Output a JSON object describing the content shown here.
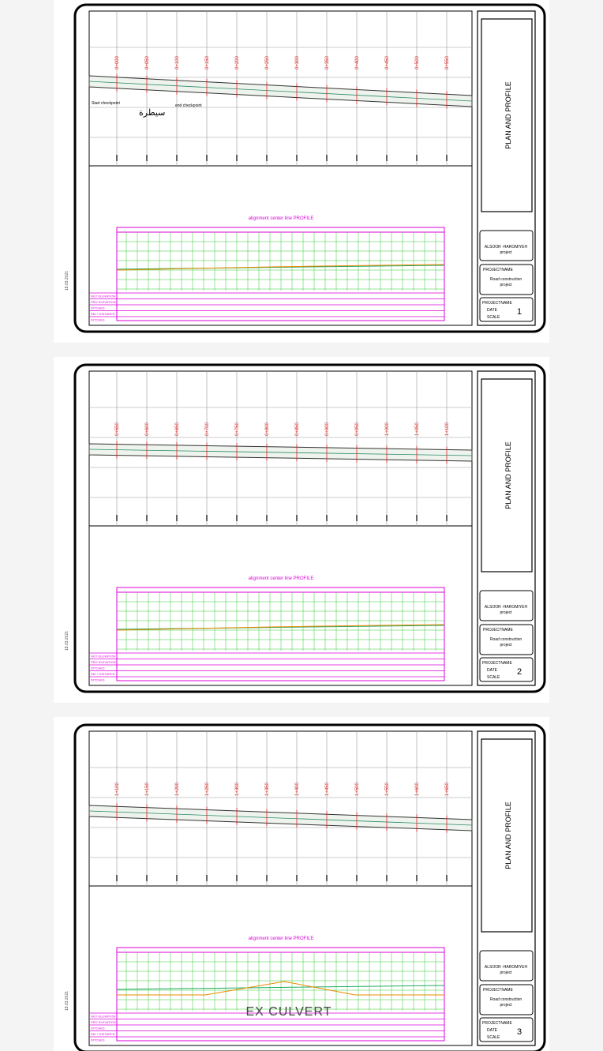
{
  "title_block": {
    "drawing_title": "PLAN AND PROFILE",
    "client": "ALSOOR -HAROMIYEH",
    "client_sub": "project",
    "project_label": "PROJECTNAME",
    "project_name": "Road construction",
    "project_sub": "project",
    "date_label": "DATE",
    "scale_label": "SCALE"
  },
  "profile_title": "alignment center line PROFILE",
  "row_labels": [
    "NGT ELEVATION",
    "PRG ELEVATION",
    "DITCHES",
    "KM + DISTANCE",
    "DITCHES"
  ],
  "sheets": [
    {
      "number": "1",
      "date": "18.03.2021",
      "stations": [
        "0+000",
        "0+050",
        "0+100",
        "0+150",
        "0+200",
        "0+250",
        "0+300",
        "0+350",
        "0+400",
        "0+450",
        "0+500",
        "0+550"
      ],
      "start_note": "Start checkpoint",
      "end_note": "end checkpoint",
      "arabic_note": "سيطرة"
    },
    {
      "number": "2",
      "date": "18.03.2021",
      "stations": [
        "0+550",
        "0+600",
        "0+650",
        "0+700",
        "0+750",
        "0+800",
        "0+850",
        "0+900",
        "0+950",
        "1+000",
        "1+050",
        "1+100"
      ]
    },
    {
      "number": "3",
      "date": "18.03.2021",
      "stations": [
        "1+100",
        "1+150",
        "1+200",
        "1+250",
        "1+300",
        "1+350",
        "1+400",
        "1+450",
        "1+500",
        "1+550",
        "1+600",
        "1+650"
      ],
      "culvert_note": "EX CULVERT"
    }
  ]
}
